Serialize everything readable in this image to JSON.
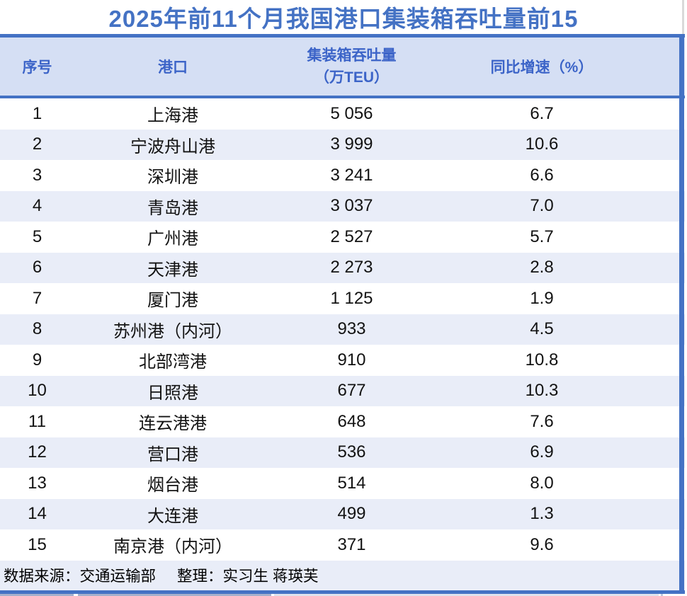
{
  "colors": {
    "accent": "#4472C4",
    "header_bg": "#D5DFF4",
    "header_text": "#3C64C8",
    "zebra": "#E9EDF8"
  },
  "title": "2025年前11个月我国港口集装箱吞吐量前15",
  "table": {
    "headers": {
      "index": "序号",
      "port": "港口",
      "throughput_line1": "集装箱吞吐量",
      "throughput_line2": "（万TEU）",
      "growth": "同比增速（%）"
    },
    "rows": [
      {
        "no": "1",
        "port": "上海港",
        "throughput": "5 056",
        "growth": "6.7"
      },
      {
        "no": "2",
        "port": "宁波舟山港",
        "throughput": "3 999",
        "growth": "10.6"
      },
      {
        "no": "3",
        "port": "深圳港",
        "throughput": "3 241",
        "growth": "6.6"
      },
      {
        "no": "4",
        "port": "青岛港",
        "throughput": "3 037",
        "growth": "7.0"
      },
      {
        "no": "5",
        "port": "广州港",
        "throughput": "2 527",
        "growth": "5.7"
      },
      {
        "no": "6",
        "port": "天津港",
        "throughput": "2 273",
        "growth": "2.8"
      },
      {
        "no": "7",
        "port": "厦门港",
        "throughput": "1 125",
        "growth": "1.9"
      },
      {
        "no": "8",
        "port": "苏州港（内河）",
        "throughput": "933",
        "growth": "4.5"
      },
      {
        "no": "9",
        "port": "北部湾港",
        "throughput": "910",
        "growth": "10.8"
      },
      {
        "no": "10",
        "port": "日照港",
        "throughput": "677",
        "growth": "10.3"
      },
      {
        "no": "11",
        "port": "连云港港",
        "throughput": "648",
        "growth": "7.6"
      },
      {
        "no": "12",
        "port": "营口港",
        "throughput": "536",
        "growth": "6.9"
      },
      {
        "no": "13",
        "port": "烟台港",
        "throughput": "514",
        "growth": "8.0"
      },
      {
        "no": "14",
        "port": "大连港",
        "throughput": "499",
        "growth": "1.3"
      },
      {
        "no": "15",
        "port": "南京港（内河）",
        "throughput": "371",
        "growth": "9.6"
      }
    ]
  },
  "footer": {
    "source": "数据来源：交通运输部",
    "compiler": "整理：实习生 蒋瑛芙"
  },
  "chart_data": {
    "type": "table",
    "title": "2025年前11个月我国港口集装箱吞吐量前15",
    "columns": [
      "序号",
      "港口",
      "集装箱吞吐量（万TEU）",
      "同比增速（%）"
    ],
    "rows": [
      [
        1,
        "上海港",
        5056,
        6.7
      ],
      [
        2,
        "宁波舟山港",
        3999,
        10.6
      ],
      [
        3,
        "深圳港",
        3241,
        6.6
      ],
      [
        4,
        "青岛港",
        3037,
        7.0
      ],
      [
        5,
        "广州港",
        2527,
        5.7
      ],
      [
        6,
        "天津港",
        2273,
        2.8
      ],
      [
        7,
        "厦门港",
        1125,
        1.9
      ],
      [
        8,
        "苏州港（内河）",
        933,
        4.5
      ],
      [
        9,
        "北部湾港",
        910,
        10.8
      ],
      [
        10,
        "日照港",
        677,
        10.3
      ],
      [
        11,
        "连云港港",
        648,
        7.6
      ],
      [
        12,
        "营口港",
        536,
        6.9
      ],
      [
        13,
        "烟台港",
        514,
        8.0
      ],
      [
        14,
        "大连港",
        499,
        1.3
      ],
      [
        15,
        "南京港（内河）",
        371,
        9.6
      ]
    ],
    "source": "数据来源：交通运输部",
    "compiler": "整理：实习生 蒋瑛芙"
  }
}
